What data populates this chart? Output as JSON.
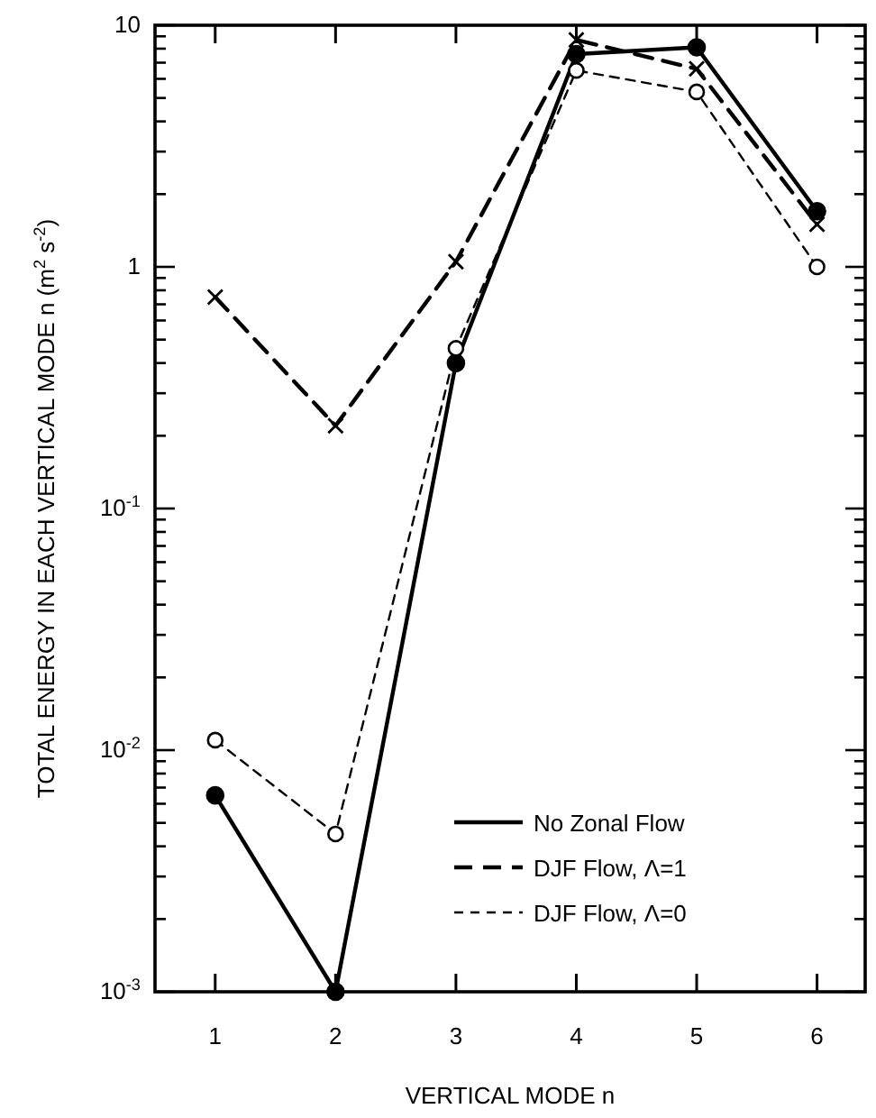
{
  "chart_data": {
    "type": "line",
    "xlabel": "VERTICAL MODE n",
    "ylabel": "TOTAL ENERGY IN EACH VERTICAL MODE n (m$^{2}$ s$^{-2}$)",
    "log": "y",
    "x": [
      1,
      2,
      3,
      4,
      5,
      6
    ],
    "xlim": [
      0.5,
      6.4
    ],
    "xticks": [
      1,
      2,
      3,
      4,
      5,
      6
    ],
    "ylim": [
      0.001,
      10
    ],
    "yticks": [
      {
        "value": 0.001,
        "label": "10$^{-3}$"
      },
      {
        "value": 0.002,
        "label": null
      },
      {
        "value": 0.003,
        "label": null
      },
      {
        "value": 0.004,
        "label": null
      },
      {
        "value": 0.005,
        "label": null
      },
      {
        "value": 0.006,
        "label": null
      },
      {
        "value": 0.007,
        "label": null
      },
      {
        "value": 0.008,
        "label": null
      },
      {
        "value": 0.009,
        "label": null
      },
      {
        "value": 0.01,
        "label": "10$^{-2}$"
      },
      {
        "value": 0.02,
        "label": null
      },
      {
        "value": 0.03,
        "label": null
      },
      {
        "value": 0.04,
        "label": null
      },
      {
        "value": 0.05,
        "label": null
      },
      {
        "value": 0.06,
        "label": null
      },
      {
        "value": 0.07,
        "label": null
      },
      {
        "value": 0.08,
        "label": null
      },
      {
        "value": 0.09,
        "label": null
      },
      {
        "value": 0.1,
        "label": "10$^{-1}$"
      },
      {
        "value": 0.2,
        "label": null
      },
      {
        "value": 0.3,
        "label": null
      },
      {
        "value": 0.4,
        "label": null
      },
      {
        "value": 0.5,
        "label": null
      },
      {
        "value": 0.6,
        "label": null
      },
      {
        "value": 0.7,
        "label": null
      },
      {
        "value": 0.8,
        "label": null
      },
      {
        "value": 0.9,
        "label": null
      },
      {
        "value": 1,
        "label": "1"
      },
      {
        "value": 2,
        "label": null
      },
      {
        "value": 3,
        "label": null
      },
      {
        "value": 4,
        "label": null
      },
      {
        "value": 5,
        "label": null
      },
      {
        "value": 6,
        "label": null
      },
      {
        "value": 7,
        "label": null
      },
      {
        "value": 8,
        "label": null
      },
      {
        "value": 9,
        "label": null
      },
      {
        "value": 10,
        "label": "10"
      }
    ],
    "grid": false,
    "legend": "bottom right",
    "series": [
      {
        "name": "No Zonal Flow",
        "color": "#000000",
        "marker": "circle",
        "line_style": "solid",
        "values": [
          0.0065,
          0.001,
          0.4,
          7.6,
          8.1,
          1.7
        ]
      },
      {
        "name": "DJF Flow, Λ=1",
        "color": "#000000",
        "marker": "cross",
        "line_style": "dashed",
        "values": [
          0.75,
          0.22,
          1.05,
          8.7,
          6.6,
          1.5
        ]
      },
      {
        "name": "DJF Flow, Λ=0",
        "color": "#000000",
        "marker": "circle",
        "line_style": "dashed",
        "values": [
          0.011,
          0.0045,
          0.46,
          6.5,
          5.3,
          1.0
        ]
      }
    ]
  }
}
